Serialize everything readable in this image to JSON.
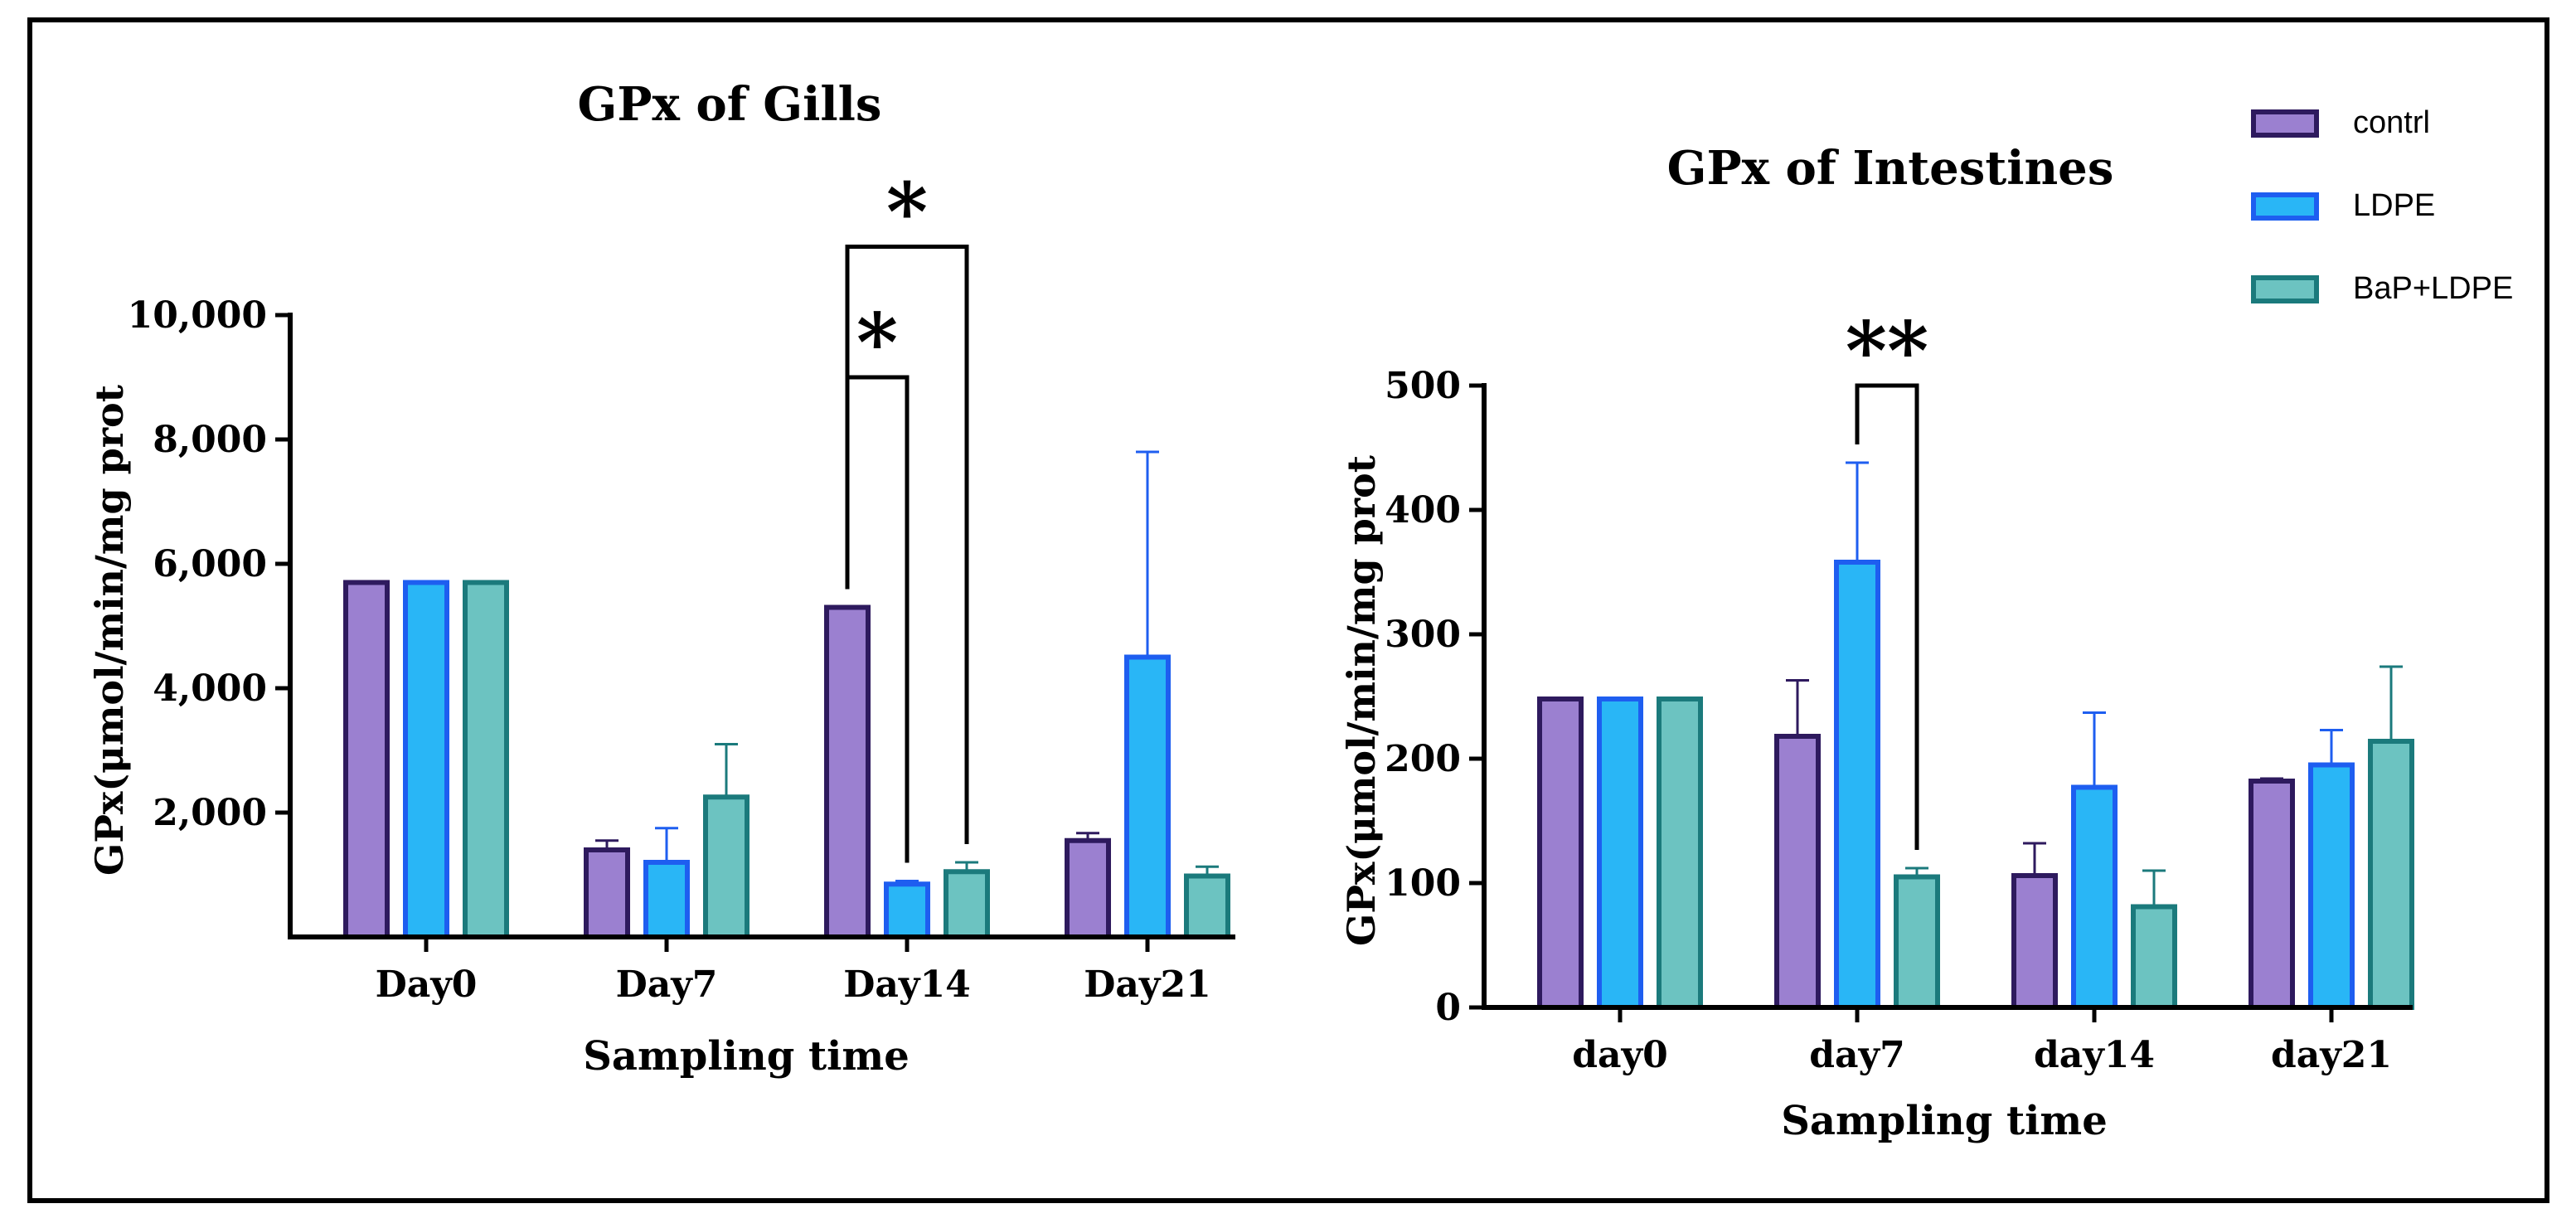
{
  "legend": [
    {
      "label": "contrl",
      "fill": "#9b80d0",
      "stroke": "#2e1a5e"
    },
    {
      "label": "LDPE",
      "fill": "#29b6f6",
      "stroke": "#1e5ef0"
    },
    {
      "label": "BaP+LDPE",
      "fill": "#6cc3c1",
      "stroke": "#1b7a7c"
    }
  ],
  "chart_data": [
    {
      "type": "bar",
      "title": "GPx of Gills",
      "xlabel": "Sampling time",
      "ylabel": "GPx(μmol/min/mg prot",
      "categories": [
        "Day0",
        "Day7",
        "Day14",
        "Day21"
      ],
      "ylim": [
        0,
        10000
      ],
      "yticks": [
        2000,
        4000,
        6000,
        8000,
        10000
      ],
      "ytick_labels": [
        "2,000",
        "4,000",
        "6,000",
        "8,000",
        "10,000"
      ],
      "series": [
        {
          "name": "contrl",
          "values": [
            5700,
            1400,
            5300,
            1550
          ],
          "errors": [
            0,
            150,
            0,
            120
          ]
        },
        {
          "name": "LDPE",
          "values": [
            5700,
            1200,
            850,
            4500
          ],
          "errors": [
            0,
            550,
            50,
            3300
          ]
        },
        {
          "name": "BaP+LDPE",
          "values": [
            5700,
            2250,
            1050,
            980
          ],
          "errors": [
            0,
            850,
            150,
            150
          ]
        }
      ],
      "annotations": [
        {
          "label": "*",
          "from_category": "Day14",
          "from_series": "contrl",
          "to_category": "Day14",
          "to_series": "LDPE",
          "level": 9000
        },
        {
          "label": "*",
          "from_category": "Day14",
          "from_series": "contrl",
          "to_category": "Day14",
          "to_series": "BaP+LDPE",
          "level": 11100
        }
      ]
    },
    {
      "type": "bar",
      "title": "GPx of Intestines",
      "xlabel": "Sampling time",
      "ylabel": "GPx(μmol/min/mg prot",
      "categories": [
        "day0",
        "day7",
        "day14",
        "day21"
      ],
      "ylim": [
        0,
        500
      ],
      "yticks": [
        0,
        100,
        200,
        300,
        400,
        500
      ],
      "ytick_labels": [
        "0",
        "100",
        "200",
        "300",
        "400",
        "500"
      ],
      "series": [
        {
          "name": "contrl",
          "values": [
            248,
            218,
            106,
            182
          ],
          "errors": [
            0,
            45,
            26,
            2
          ]
        },
        {
          "name": "LDPE",
          "values": [
            248,
            358,
            177,
            195
          ],
          "errors": [
            0,
            80,
            60,
            28
          ]
        },
        {
          "name": "BaP+LDPE",
          "values": [
            248,
            105,
            81,
            214
          ],
          "errors": [
            0,
            7,
            29,
            60
          ]
        }
      ],
      "annotations": [
        {
          "label": "**",
          "from_category": "day7",
          "from_series": "LDPE",
          "to_category": "day7",
          "to_series": "BaP+LDPE",
          "level": 500
        }
      ]
    }
  ]
}
